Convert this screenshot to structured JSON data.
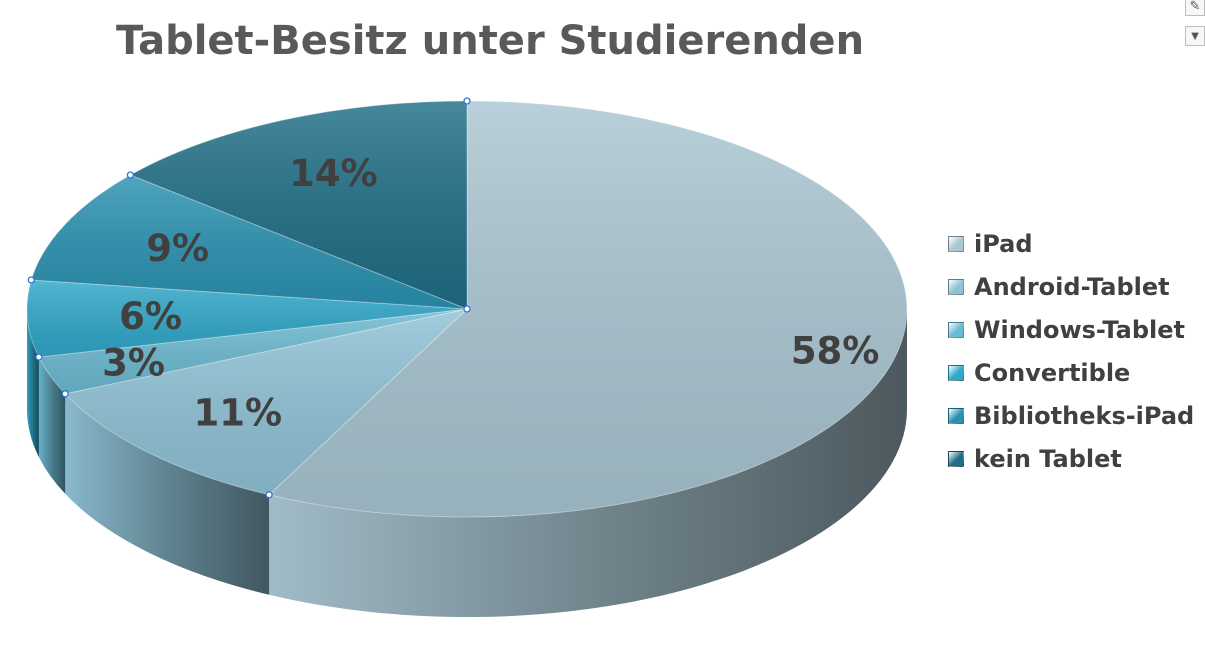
{
  "chart_data": {
    "type": "pie",
    "title": "Tablet-Besitz unter Studierenden",
    "categories": [
      "iPad",
      "Android-Tablet",
      "Windows-Tablet",
      "Convertible",
      "Bibliotheks-iPad",
      "kein Tablet"
    ],
    "values": [
      58,
      11,
      3,
      6,
      9,
      14
    ],
    "data_labels": [
      "58%",
      "11%",
      "3%",
      "6%",
      "9%",
      "14%"
    ],
    "unit": "%",
    "style": "3d",
    "legend_position": "right",
    "colors": [
      "#a9c6d2",
      "#8fc2d6",
      "#6cbad2",
      "#2fa7c9",
      "#2a92b1",
      "#1f6e86"
    ]
  },
  "toolbar": {
    "style_icon": "brush-icon",
    "filter_icon": "filter-icon"
  }
}
